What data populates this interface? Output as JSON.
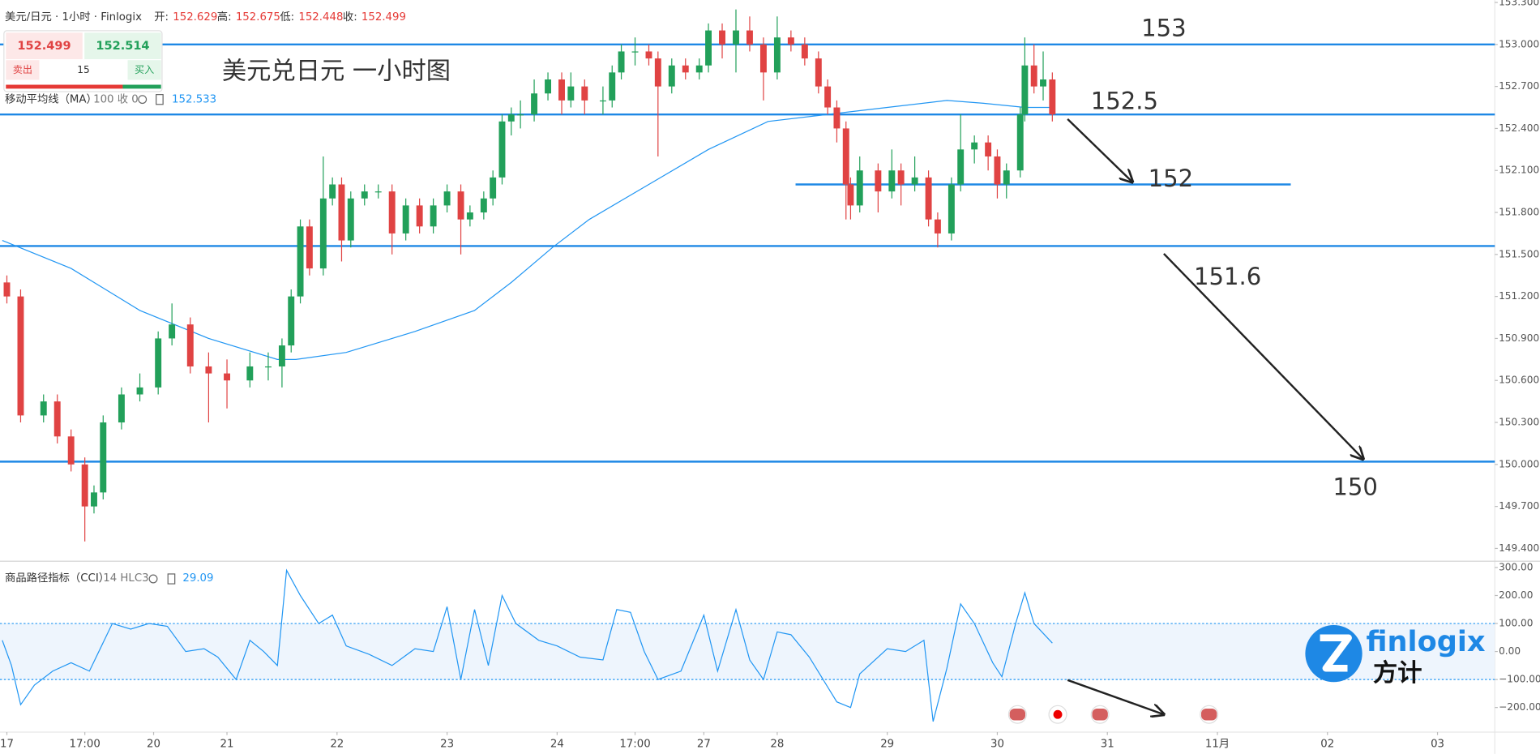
{
  "header": {
    "symbol": "美元/日元 · 1小时 · Finlogix",
    "fields": [
      {
        "label": "开:",
        "value": 152.629
      },
      {
        "label": "高:",
        "value": 152.675
      },
      {
        "label": "低:",
        "value": 152.448
      },
      {
        "label": "收:",
        "value": 152.499
      }
    ]
  },
  "trade_panel": {
    "sell_price": 152.499,
    "buy_price": 152.514,
    "sell": "卖出",
    "quantity": 15,
    "buy": "买入"
  },
  "logo": {
    "name": "finlogix",
    "cn": "方计"
  },
  "chart_data": [
    {
      "type": "candlestick",
      "title": "美元兑日元 一小时图",
      "up_color": "#22a05a",
      "down_color": "#e04343",
      "x": [
        1,
        4,
        9,
        12,
        15,
        18,
        20,
        22,
        26,
        30,
        34,
        37,
        41,
        45,
        49,
        54,
        58,
        61,
        63,
        65,
        67,
        70,
        72,
        74,
        76,
        79,
        82,
        85,
        88,
        91,
        94,
        97,
        100,
        102,
        105,
        107,
        109,
        111,
        113,
        116,
        119,
        122,
        124,
        127,
        131,
        133,
        135,
        138,
        141,
        143,
        146,
        149,
        152,
        154,
        157,
        160,
        163,
        166,
        169,
        172,
        175,
        178,
        180,
        182,
        184,
        185,
        187,
        191,
        194,
        196,
        199,
        202,
        204,
        207,
        209,
        212,
        215,
        217,
        219,
        222,
        223,
        225,
        227,
        229
      ],
      "open": [
        151.3,
        151.2,
        150.35,
        150.45,
        150.2,
        150.0,
        149.7,
        149.8,
        150.3,
        150.5,
        150.55,
        150.9,
        151.0,
        150.7,
        150.65,
        150.6,
        150.7,
        150.7,
        150.85,
        151.2,
        151.7,
        151.4,
        151.9,
        152.0,
        151.6,
        151.9,
        151.95,
        151.95,
        151.65,
        151.85,
        151.7,
        151.85,
        151.95,
        151.75,
        151.8,
        151.9,
        152.05,
        152.45,
        152.5,
        152.5,
        152.65,
        152.75,
        152.6,
        152.7,
        152.6,
        152.6,
        152.8,
        152.95,
        152.95,
        152.9,
        152.7,
        152.85,
        152.8,
        152.85,
        153.1,
        153.0,
        153.1,
        153.0,
        152.8,
        153.05,
        153.0,
        152.9,
        152.7,
        152.55,
        152.4,
        152.0,
        151.85,
        152.1,
        151.95,
        152.1,
        152.0,
        152.05,
        151.75,
        151.65,
        152.0,
        152.25,
        152.3,
        152.2,
        152.0,
        152.1,
        152.5,
        152.85,
        152.7,
        152.75
      ],
      "high": [
        151.35,
        151.25,
        150.5,
        150.5,
        150.25,
        150.05,
        149.85,
        150.35,
        150.55,
        150.65,
        150.95,
        151.15,
        151.05,
        150.8,
        150.75,
        150.8,
        150.8,
        150.9,
        151.25,
        151.75,
        151.75,
        152.2,
        152.05,
        152.05,
        151.95,
        152.0,
        152.0,
        152.0,
        151.9,
        151.9,
        151.9,
        152.0,
        152.0,
        151.85,
        151.95,
        152.1,
        152.5,
        152.55,
        152.6,
        152.75,
        152.8,
        152.8,
        152.8,
        152.75,
        152.7,
        152.85,
        153.0,
        153.05,
        153.0,
        152.95,
        152.9,
        152.9,
        152.9,
        153.15,
        153.15,
        153.25,
        153.2,
        153.05,
        153.2,
        153.1,
        153.05,
        152.95,
        152.75,
        152.6,
        152.45,
        152.05,
        152.2,
        152.15,
        152.25,
        152.15,
        152.2,
        152.1,
        151.8,
        152.05,
        152.5,
        152.35,
        152.35,
        152.25,
        152.15,
        152.55,
        153.05,
        153.0,
        152.95,
        152.8
      ],
      "low": [
        151.15,
        150.3,
        150.3,
        150.15,
        149.95,
        149.45,
        149.65,
        149.75,
        150.25,
        150.45,
        150.5,
        150.85,
        150.65,
        150.3,
        150.4,
        150.55,
        150.6,
        150.55,
        150.8,
        151.15,
        151.35,
        151.35,
        151.85,
        151.45,
        151.55,
        151.85,
        151.9,
        151.5,
        151.6,
        151.65,
        151.65,
        151.8,
        151.5,
        151.7,
        151.75,
        151.85,
        152.0,
        152.35,
        152.4,
        152.45,
        152.6,
        152.5,
        152.55,
        152.5,
        152.5,
        152.55,
        152.75,
        152.85,
        152.85,
        152.2,
        152.65,
        152.75,
        152.75,
        152.8,
        152.9,
        152.8,
        152.95,
        152.6,
        152.75,
        152.95,
        152.85,
        152.65,
        152.5,
        152.3,
        151.75,
        151.75,
        151.8,
        151.8,
        151.9,
        151.85,
        151.95,
        151.7,
        151.55,
        151.6,
        151.95,
        152.15,
        152.1,
        151.9,
        151.9,
        152.05,
        152.45,
        152.65,
        152.6,
        152.45
      ],
      "close": [
        151.2,
        150.35,
        150.45,
        150.2,
        150.0,
        149.7,
        149.8,
        150.3,
        150.5,
        150.55,
        150.9,
        151.0,
        150.7,
        150.65,
        150.6,
        150.7,
        150.7,
        150.85,
        151.2,
        151.7,
        151.4,
        151.9,
        152.0,
        151.6,
        151.9,
        151.95,
        151.95,
        151.65,
        151.85,
        151.7,
        151.85,
        151.95,
        151.75,
        151.8,
        151.9,
        152.05,
        152.45,
        152.5,
        152.5,
        152.65,
        152.75,
        152.6,
        152.7,
        152.6,
        152.6,
        152.8,
        152.95,
        152.95,
        152.9,
        152.7,
        152.85,
        152.8,
        152.85,
        153.1,
        153.0,
        153.1,
        153.0,
        152.8,
        153.05,
        153.0,
        152.9,
        152.7,
        152.55,
        152.4,
        152.0,
        151.85,
        152.1,
        151.95,
        152.1,
        152.0,
        152.05,
        151.75,
        151.65,
        152.0,
        152.25,
        152.3,
        152.2,
        152.0,
        152.1,
        152.5,
        152.85,
        152.7,
        152.75,
        152.5
      ],
      "ma": {
        "name": "移动平均线（MA）",
        "params": "100 收 0",
        "last": 152.533,
        "color": "#2196f3",
        "x": [
          0,
          15,
          30,
          45,
          60,
          64,
          75,
          90,
          103,
          111,
          120,
          128,
          141,
          154,
          167,
          180,
          193,
          206,
          214,
          223,
          229
        ],
        "values": [
          151.6,
          151.4,
          151.1,
          150.9,
          150.75,
          150.75,
          150.8,
          150.95,
          151.1,
          151.3,
          151.55,
          151.75,
          152.0,
          152.25,
          152.45,
          152.5,
          152.55,
          152.6,
          152.58,
          152.55,
          152.55
        ]
      },
      "levels": [
        {
          "value": 153,
          "label": "153"
        },
        {
          "value": 152.5,
          "label": "152.5"
        },
        {
          "value": 152,
          "label": "152",
          "x": [
            173,
            281
          ]
        },
        {
          "value": 151.56,
          "label": "151.6"
        },
        {
          "value": 150.02,
          "label": "150"
        }
      ],
      "level_color": "#1e88e5",
      "xlim": [
        -0.5,
        325.5
      ],
      "ylim": [
        149.32,
        153.3
      ],
      "yticks": [
        {
          "value": 149.4,
          "label": "149.400"
        },
        {
          "value": 149.7,
          "label": "149.700"
        },
        {
          "value": 150.0,
          "label": "150.000"
        },
        {
          "value": 150.3,
          "label": "150.300"
        },
        {
          "value": 150.6,
          "label": "150.600"
        },
        {
          "value": 150.9,
          "label": "150.900"
        },
        {
          "value": 151.2,
          "label": "151.200"
        },
        {
          "value": 151.5,
          "label": "151.500"
        },
        {
          "value": 151.8,
          "label": "151.800"
        },
        {
          "value": 152.1,
          "label": "152.100"
        },
        {
          "value": 152.4,
          "label": "152.400"
        },
        {
          "value": 152.7,
          "label": "152.700"
        },
        {
          "value": 153.0,
          "label": "153.000"
        },
        {
          "value": 153.3,
          "label": "153.300"
        }
      ]
    },
    {
      "type": "line",
      "name": "商品路径指标（CCI）",
      "params": "14 HLC3",
      "last": 29.09,
      "color": "#2196f3",
      "band_color": "#eef5fd",
      "x": [
        0,
        2,
        4,
        7,
        11,
        15,
        19,
        24,
        28,
        32,
        36,
        40,
        44,
        47,
        51,
        54,
        57,
        60,
        62,
        65,
        69,
        72,
        75,
        80,
        85,
        90,
        94,
        97,
        100,
        103,
        106,
        109,
        112,
        117,
        121,
        126,
        131,
        134,
        137,
        140,
        143,
        148,
        153,
        156,
        160,
        163,
        166,
        169,
        172,
        176,
        179,
        182,
        185,
        187,
        193,
        197,
        201,
        203,
        206,
        209,
        212,
        216,
        218,
        221,
        223,
        225,
        229
      ],
      "values": [
        40,
        -50,
        -190,
        -120,
        -70,
        -40,
        -70,
        100,
        80,
        100,
        90,
        0,
        10,
        -20,
        -100,
        40,
        0,
        -50,
        290,
        200,
        100,
        130,
        20,
        -10,
        -50,
        10,
        0,
        160,
        -100,
        150,
        -50,
        200,
        100,
        40,
        20,
        -20,
        -30,
        150,
        140,
        0,
        -100,
        -70,
        130,
        -70,
        150,
        -30,
        -100,
        70,
        60,
        -20,
        -100,
        -180,
        -200,
        -80,
        10,
        0,
        40,
        -250,
        -60,
        170,
        100,
        -40,
        -90,
        100,
        210,
        100,
        30
      ],
      "bands": [
        -100,
        100
      ],
      "xlim": [
        -0.5,
        325.5
      ],
      "ylim": [
        -288,
        319
      ],
      "yticks": [
        {
          "value": 300,
          "label": "300.00"
        },
        {
          "value": 200,
          "label": "200.00"
        },
        {
          "value": 100,
          "label": "100.00"
        },
        {
          "value": 0,
          "label": "0.00"
        },
        {
          "value": -100,
          "label": "−100.00"
        },
        {
          "value": -200,
          "label": "−200.00"
        }
      ],
      "xticks": [
        {
          "value": 1,
          "label": "17"
        },
        {
          "value": 18,
          "label": "17:00"
        },
        {
          "value": 33,
          "label": "20"
        },
        {
          "value": 49,
          "label": "21"
        },
        {
          "value": 73,
          "label": "22"
        },
        {
          "value": 97,
          "label": "23"
        },
        {
          "value": 121,
          "label": "24"
        },
        {
          "value": 138,
          "label": "17:00"
        },
        {
          "value": 153,
          "label": "27"
        },
        {
          "value": 169,
          "label": "28"
        },
        {
          "value": 193,
          "label": "29"
        },
        {
          "value": 217,
          "label": "30"
        },
        {
          "value": 241,
          "label": "31"
        },
        {
          "value": 265,
          "label": "11月"
        },
        {
          "value": 289,
          "label": "02"
        },
        {
          "value": 313,
          "label": "03"
        }
      ]
    }
  ]
}
